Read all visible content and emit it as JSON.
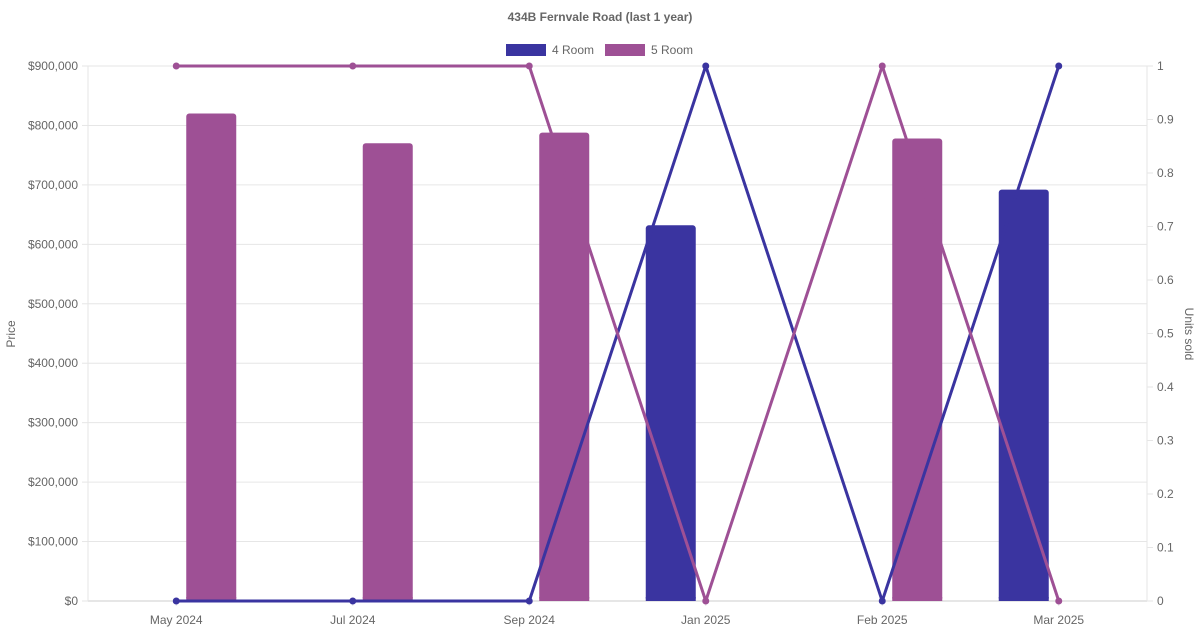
{
  "chart_data": {
    "type": "bar",
    "title": "434B Fernvale Road (last 1 year)",
    "categories": [
      "May 2024",
      "Jul 2024",
      "Sep 2024",
      "Jan 2025",
      "Feb 2025",
      "Mar 2025"
    ],
    "ylabel_left": "Price",
    "ylabel_right": "Units sold",
    "ylim_left": [
      0,
      900000
    ],
    "ylim_right": [
      0,
      1
    ],
    "yticks_left": [
      "$0",
      "$100,000",
      "$200,000",
      "$300,000",
      "$400,000",
      "$500,000",
      "$600,000",
      "$700,000",
      "$800,000",
      "$900,000"
    ],
    "yticks_right": [
      "0",
      "0.1",
      "0.2",
      "0.3",
      "0.4",
      "0.5",
      "0.6",
      "0.7",
      "0.8",
      "0.9",
      "1"
    ],
    "legend_position": "top",
    "grid": true,
    "series": [
      {
        "name": "4 Room",
        "color": "#3a34a0",
        "price": [
          null,
          null,
          null,
          632000,
          null,
          692000
        ],
        "units_sold": [
          0,
          0,
          0,
          1,
          0,
          1
        ]
      },
      {
        "name": "5 Room",
        "color": "#9e5095",
        "price": [
          820000,
          770000,
          788000,
          null,
          778000,
          null
        ],
        "units_sold": [
          1,
          1,
          1,
          0,
          1,
          0
        ]
      }
    ]
  }
}
